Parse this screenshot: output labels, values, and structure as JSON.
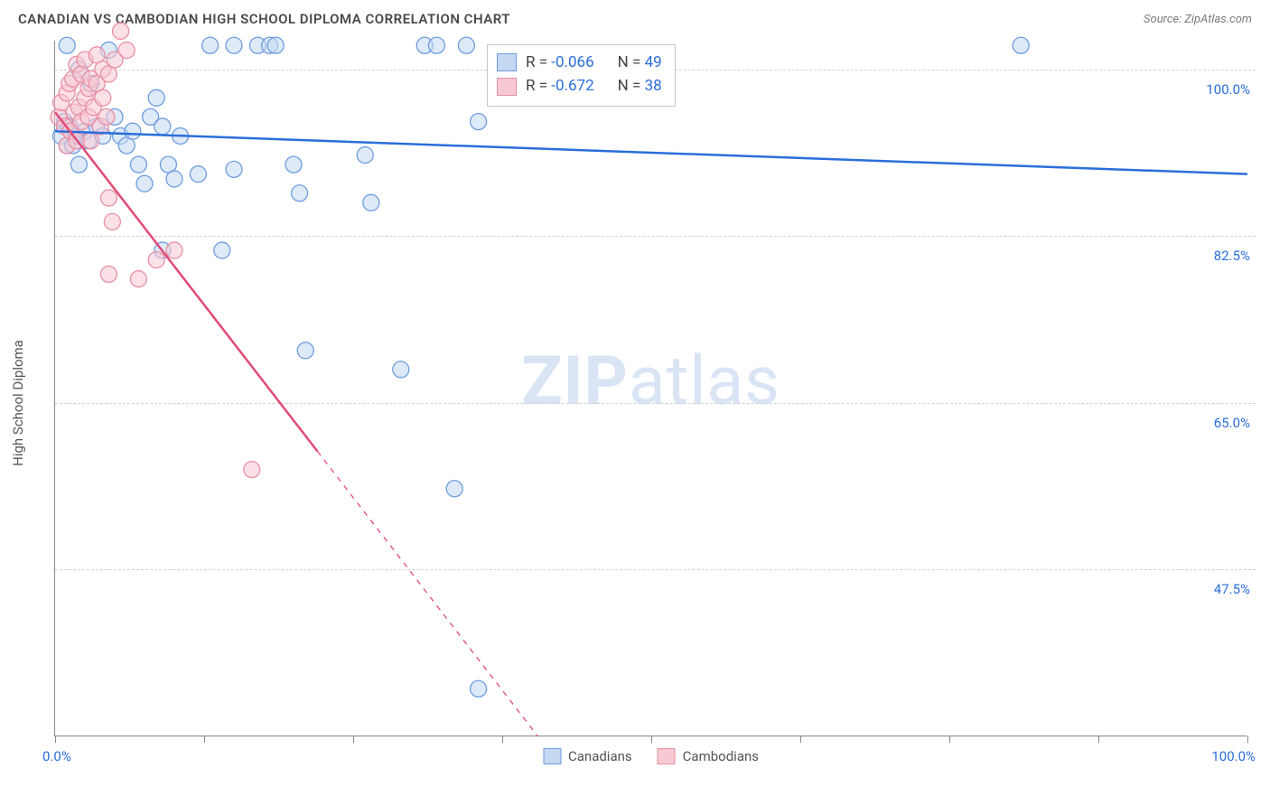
{
  "title": "CANADIAN VS CAMBODIAN HIGH SCHOOL DIPLOMA CORRELATION CHART",
  "source": "Source: ZipAtlas.com",
  "y_axis_title": "High School Diploma",
  "watermark_bold": "ZIP",
  "watermark_rest": "atlas",
  "chart": {
    "type": "scatter",
    "xlim": [
      0,
      100
    ],
    "ylim": [
      30,
      103
    ],
    "y_gridlines": [
      47.5,
      65.0,
      82.5,
      100.0
    ],
    "y_tick_labels": [
      "47.5%",
      "65.0%",
      "82.5%",
      "100.0%"
    ],
    "x_ticks": [
      0,
      12.5,
      25,
      37.5,
      50,
      62.5,
      75,
      87.5,
      100
    ],
    "x_min_label": "0.0%",
    "x_max_label": "100.0%",
    "grid_color": "#d0d0d0",
    "axis_color": "#888888",
    "tick_label_color": "#2b6edb",
    "background_color": "#ffffff",
    "marker_radius": 9,
    "marker_stroke_width": 1.3,
    "line_width": 2.5,
    "series": [
      {
        "name": "Canadians",
        "fill": "#c4d8f2",
        "stroke": "#6d9de0",
        "fill_opacity": 0.55,
        "line_color": "#2a6edb",
        "R": "-0.066",
        "N": "49",
        "trend": {
          "x1": 0,
          "y1": 93.5,
          "x2": 100,
          "y2": 89.0,
          "dash_after_x": null
        },
        "points": [
          [
            0.5,
            93.0
          ],
          [
            0.8,
            94.5
          ],
          [
            1.0,
            92.0
          ],
          [
            1.0,
            102.5
          ],
          [
            1.2,
            94.0
          ],
          [
            1.5,
            92.0
          ],
          [
            1.8,
            93.0
          ],
          [
            2.0,
            100.0
          ],
          [
            2.0,
            90.0
          ],
          [
            2.5,
            93.5
          ],
          [
            2.8,
            92.5
          ],
          [
            3.0,
            98.5
          ],
          [
            3.5,
            94.0
          ],
          [
            4.0,
            93.0
          ],
          [
            4.5,
            102.0
          ],
          [
            5.0,
            95.0
          ],
          [
            5.5,
            93.0
          ],
          [
            6.0,
            92.0
          ],
          [
            6.5,
            93.5
          ],
          [
            7.0,
            90.0
          ],
          [
            7.5,
            88.0
          ],
          [
            8.0,
            95.0
          ],
          [
            8.5,
            97.0
          ],
          [
            9.0,
            94.0
          ],
          [
            9.0,
            81.0
          ],
          [
            9.5,
            90.0
          ],
          [
            10.0,
            88.5
          ],
          [
            10.5,
            93.0
          ],
          [
            12.0,
            89.0
          ],
          [
            13.0,
            102.5
          ],
          [
            14.0,
            81.0
          ],
          [
            15.0,
            89.5
          ],
          [
            15.0,
            102.5
          ],
          [
            17.0,
            102.5
          ],
          [
            18.0,
            102.5
          ],
          [
            18.5,
            102.5
          ],
          [
            20.0,
            90.0
          ],
          [
            20.5,
            87.0
          ],
          [
            21.0,
            70.5
          ],
          [
            26.0,
            91.0
          ],
          [
            26.5,
            86.0
          ],
          [
            29.0,
            68.5
          ],
          [
            31.0,
            102.5
          ],
          [
            32.0,
            102.5
          ],
          [
            33.5,
            56.0
          ],
          [
            34.5,
            102.5
          ],
          [
            35.5,
            94.5
          ],
          [
            35.5,
            35.0
          ],
          [
            81.0,
            102.5
          ]
        ]
      },
      {
        "name": "Cambodians",
        "fill": "#f7c9d3",
        "stroke": "#e88fa4",
        "fill_opacity": 0.55,
        "line_color": "#e14b76",
        "R": "-0.672",
        "N": "38",
        "trend": {
          "x1": 0,
          "y1": 95.5,
          "x2": 40.5,
          "y2": 30.0,
          "dash_after_x": 22
        },
        "points": [
          [
            0.3,
            95.0
          ],
          [
            0.5,
            96.5
          ],
          [
            0.8,
            94.0
          ],
          [
            1.0,
            97.5
          ],
          [
            1.0,
            92.0
          ],
          [
            1.2,
            98.5
          ],
          [
            1.3,
            93.5
          ],
          [
            1.5,
            99.0
          ],
          [
            1.6,
            95.5
          ],
          [
            1.8,
            100.5
          ],
          [
            1.8,
            92.5
          ],
          [
            2.0,
            96.0
          ],
          [
            2.2,
            99.5
          ],
          [
            2.2,
            94.5
          ],
          [
            2.5,
            97.0
          ],
          [
            2.5,
            101.0
          ],
          [
            2.8,
            95.0
          ],
          [
            2.8,
            98.0
          ],
          [
            3.0,
            92.5
          ],
          [
            3.0,
            99.0
          ],
          [
            3.2,
            96.0
          ],
          [
            3.5,
            98.5
          ],
          [
            3.5,
            101.5
          ],
          [
            3.8,
            94.0
          ],
          [
            4.0,
            97.0
          ],
          [
            4.0,
            100.0
          ],
          [
            4.3,
            95.0
          ],
          [
            4.5,
            99.5
          ],
          [
            4.5,
            86.5
          ],
          [
            5.0,
            101.0
          ],
          [
            5.5,
            104.0
          ],
          [
            4.8,
            84.0
          ],
          [
            6.0,
            102.0
          ],
          [
            7.0,
            78.0
          ],
          [
            4.5,
            78.5
          ],
          [
            8.5,
            80.0
          ],
          [
            10.0,
            81.0
          ],
          [
            16.5,
            58.0
          ]
        ]
      }
    ]
  },
  "stats_legend": {
    "rows": [
      {
        "swatch_fill": "#c4d8f2",
        "swatch_stroke": "#6d9de0",
        "r_label": "R = ",
        "r_val": "-0.066",
        "n_label": "N = ",
        "n_val": "49"
      },
      {
        "swatch_fill": "#f7c9d3",
        "swatch_stroke": "#e88fa4",
        "r_label": "R = ",
        "r_val": "-0.672",
        "n_label": "N = ",
        "n_val": "38"
      }
    ]
  },
  "bottom_legend": {
    "items": [
      {
        "swatch_fill": "#c4d8f2",
        "swatch_stroke": "#6d9de0",
        "label": "Canadians"
      },
      {
        "swatch_fill": "#f7c9d3",
        "swatch_stroke": "#e88fa4",
        "label": "Cambodians"
      }
    ]
  }
}
